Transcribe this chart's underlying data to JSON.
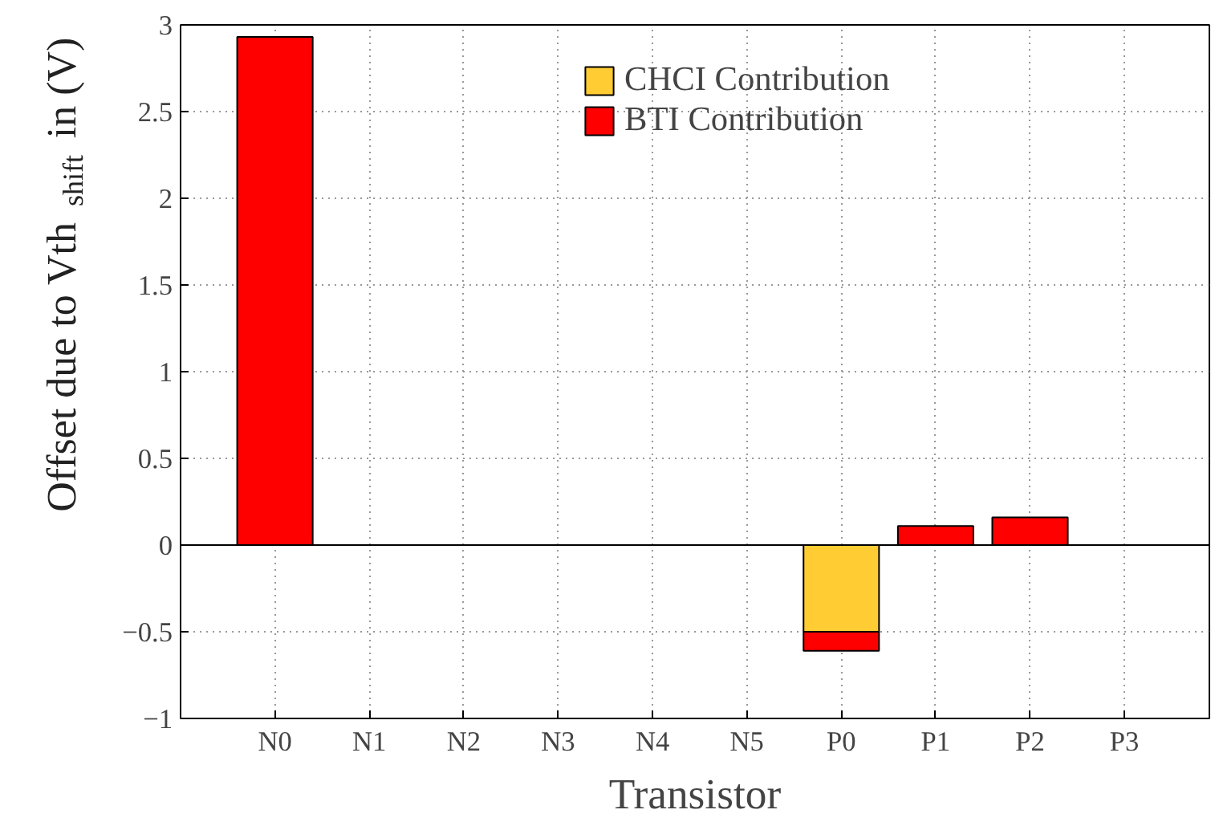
{
  "chart_data": {
    "type": "bar",
    "stacked": true,
    "xlabel": "Transistor",
    "ylabel": "Offset due to Vth$_{shift}$ in (V)",
    "categories": [
      "N0",
      "N1",
      "N2",
      "N3",
      "N4",
      "N5",
      "P0",
      "P1",
      "P2",
      "P3"
    ],
    "series": [
      {
        "name": "CHCI Contribution",
        "color": "#ffcc33",
        "values": [
          0,
          0,
          0,
          0,
          0,
          0,
          -0.5,
          0,
          0,
          0
        ]
      },
      {
        "name": "BTI Contribution",
        "color": "#ff0000",
        "values": [
          2.93,
          0,
          0,
          0,
          0,
          0,
          -0.11,
          0.11,
          0.16,
          0
        ]
      }
    ],
    "ylim": [
      -1,
      3
    ],
    "yticks": [
      {
        "value": -1,
        "label": "−1"
      },
      {
        "value": -0.5,
        "label": "−0.5"
      },
      0,
      0.5,
      1,
      1.5,
      2,
      2.5,
      3
    ],
    "grid": true,
    "legend": "top"
  }
}
